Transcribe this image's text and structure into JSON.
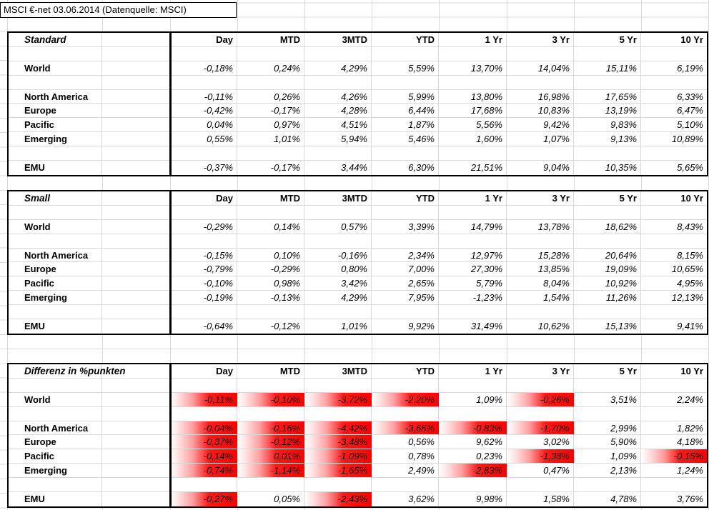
{
  "title": "MSCI €-net 03.06.2014 (Datenquelle: MSCI)",
  "columns": [
    "Day",
    "MTD",
    "3MTD",
    "YTD",
    "1 Yr",
    "3 Yr",
    "5 Yr",
    "10 Yr"
  ],
  "colors": {
    "highlight_red": "#ff0000",
    "gridline": "#d9d9d9",
    "border": "#000000",
    "background": "#ffffff"
  },
  "tables": [
    {
      "name": "Standard",
      "rows": [
        {
          "label": "World",
          "values": [
            "-0,18%",
            "0,24%",
            "4,29%",
            "5,59%",
            "13,70%",
            "14,04%",
            "15,11%",
            "6,19%"
          ]
        },
        {
          "label": "North America",
          "values": [
            "-0,11%",
            "0,26%",
            "4,26%",
            "5,99%",
            "13,80%",
            "16,98%",
            "17,65%",
            "6,33%"
          ]
        },
        {
          "label": "Europe",
          "values": [
            "-0,42%",
            "-0,17%",
            "4,28%",
            "6,44%",
            "17,68%",
            "10,83%",
            "13,19%",
            "6,47%"
          ]
        },
        {
          "label": "Pacific",
          "values": [
            "0,04%",
            "0,97%",
            "4,51%",
            "1,87%",
            "5,56%",
            "9,42%",
            "9,83%",
            "5,10%"
          ]
        },
        {
          "label": "Emerging",
          "values": [
            "0,55%",
            "1,01%",
            "5,94%",
            "5,46%",
            "1,60%",
            "1,07%",
            "9,13%",
            "10,89%"
          ]
        },
        {
          "label": "EMU",
          "values": [
            "-0,37%",
            "-0,17%",
            "3,44%",
            "6,30%",
            "21,51%",
            "9,04%",
            "10,35%",
            "5,65%"
          ]
        }
      ]
    },
    {
      "name": "Small",
      "rows": [
        {
          "label": "World",
          "values": [
            "-0,29%",
            "0,14%",
            "0,57%",
            "3,39%",
            "14,79%",
            "13,78%",
            "18,62%",
            "8,43%"
          ]
        },
        {
          "label": "North America",
          "values": [
            "-0,15%",
            "0,10%",
            "-0,16%",
            "2,34%",
            "12,97%",
            "15,28%",
            "20,64%",
            "8,15%"
          ]
        },
        {
          "label": "Europe",
          "values": [
            "-0,79%",
            "-0,29%",
            "0,80%",
            "7,00%",
            "27,30%",
            "13,85%",
            "19,09%",
            "10,65%"
          ]
        },
        {
          "label": "Pacific",
          "values": [
            "-0,10%",
            "0,98%",
            "3,42%",
            "2,65%",
            "5,79%",
            "8,04%",
            "10,92%",
            "4,95%"
          ]
        },
        {
          "label": "Emerging",
          "values": [
            "-0,19%",
            "-0,13%",
            "4,29%",
            "7,95%",
            "-1,23%",
            "1,54%",
            "11,26%",
            "12,13%"
          ]
        },
        {
          "label": "EMU",
          "values": [
            "-0,64%",
            "-0,12%",
            "1,01%",
            "9,92%",
            "31,49%",
            "10,62%",
            "15,13%",
            "9,41%"
          ]
        }
      ]
    },
    {
      "name": "Differenz in %punkten",
      "rows": [
        {
          "label": "World",
          "values": [
            "-0,11%",
            "-0,10%",
            "-3,72%",
            "-2,20%",
            "1,09%",
            "-0,26%",
            "3,51%",
            "2,24%"
          ],
          "highlight": [
            1,
            1,
            1,
            1,
            0,
            1,
            0,
            0
          ]
        },
        {
          "label": "North America",
          "values": [
            "-0,04%",
            "-0,16%",
            "-4,42%",
            "-3,65%",
            "-0,83%",
            "-1,70%",
            "2,99%",
            "1,82%"
          ],
          "highlight": [
            1,
            1,
            1,
            1,
            1,
            1,
            0,
            0
          ]
        },
        {
          "label": "Europe",
          "values": [
            "-0,37%",
            "-0,12%",
            "-3,48%",
            "0,56%",
            "9,62%",
            "3,02%",
            "5,90%",
            "4,18%"
          ],
          "highlight": [
            1,
            1,
            1,
            0,
            0,
            0,
            0,
            0
          ]
        },
        {
          "label": "Pacific",
          "values": [
            "-0,14%",
            "0,01%",
            "-1,09%",
            "0,78%",
            "0,23%",
            "-1,38%",
            "1,09%",
            "-0,15%"
          ],
          "highlight": [
            1,
            1,
            1,
            0,
            0,
            1,
            0,
            1
          ]
        },
        {
          "label": "Emerging",
          "values": [
            "-0,74%",
            "-1,14%",
            "-1,65%",
            "2,49%",
            "-2,83%",
            "0,47%",
            "2,13%",
            "1,24%"
          ],
          "highlight": [
            1,
            1,
            1,
            0,
            1,
            0,
            0,
            0
          ]
        },
        {
          "label": "EMU",
          "values": [
            "-0,27%",
            "0,05%",
            "-2,43%",
            "3,62%",
            "9,98%",
            "1,58%",
            "4,78%",
            "3,76%"
          ],
          "highlight": [
            1,
            0,
            1,
            0,
            0,
            0,
            0,
            0
          ]
        }
      ]
    }
  ]
}
